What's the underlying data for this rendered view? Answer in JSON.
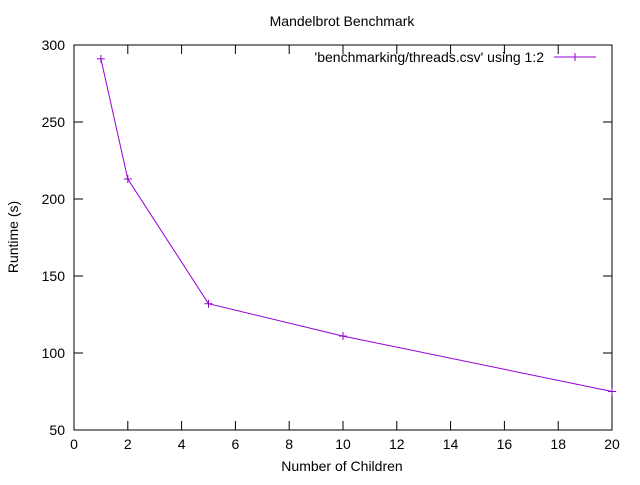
{
  "chart_data": {
    "type": "line",
    "title": "Mandelbrot Benchmark",
    "xlabel": "Number of Children",
    "ylabel": "Runtime (s)",
    "xlim": [
      0,
      20
    ],
    "ylim": [
      50,
      300
    ],
    "x_ticks": [
      0,
      2,
      4,
      6,
      8,
      10,
      12,
      14,
      16,
      18,
      20
    ],
    "y_ticks": [
      50,
      100,
      150,
      200,
      250,
      300
    ],
    "grid": false,
    "legend_position": "top-right",
    "series": [
      {
        "name": "'benchmarking/threads.csv' using 1:2",
        "color": "#9400d3",
        "marker": "plus",
        "x": [
          1,
          2,
          5,
          10,
          20
        ],
        "y": [
          291,
          213,
          132,
          111,
          75
        ]
      }
    ]
  }
}
